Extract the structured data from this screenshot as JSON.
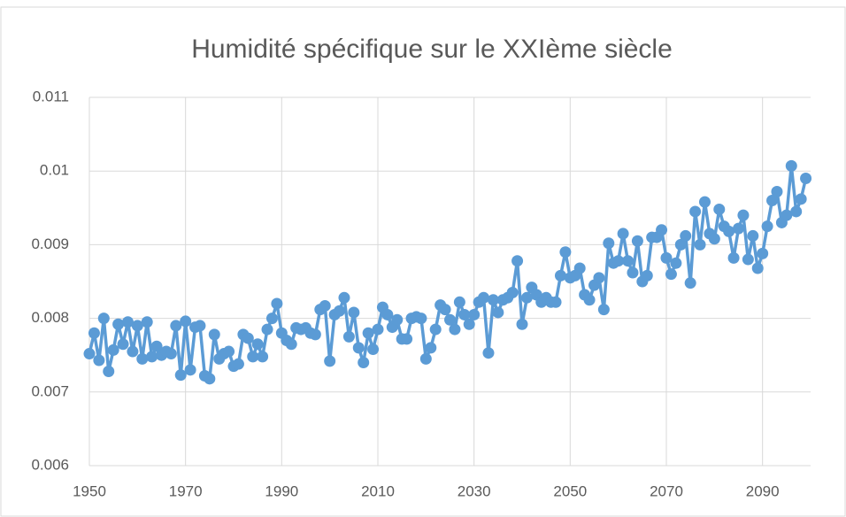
{
  "chart_data": {
    "type": "line",
    "title": "Humidité spécifique sur le XXIème siècle",
    "x": [
      1950,
      1951,
      1952,
      1953,
      1954,
      1955,
      1956,
      1957,
      1958,
      1959,
      1960,
      1961,
      1962,
      1963,
      1964,
      1965,
      1966,
      1967,
      1968,
      1969,
      1970,
      1971,
      1972,
      1973,
      1974,
      1975,
      1976,
      1977,
      1978,
      1979,
      1980,
      1981,
      1982,
      1983,
      1984,
      1985,
      1986,
      1987,
      1988,
      1989,
      1990,
      1991,
      1992,
      1993,
      1994,
      1995,
      1996,
      1997,
      1998,
      1999,
      2000,
      2001,
      2002,
      2003,
      2004,
      2005,
      2006,
      2007,
      2008,
      2009,
      2010,
      2011,
      2012,
      2013,
      2014,
      2015,
      2016,
      2017,
      2018,
      2019,
      2020,
      2021,
      2022,
      2023,
      2024,
      2025,
      2026,
      2027,
      2028,
      2029,
      2030,
      2031,
      2032,
      2033,
      2034,
      2035,
      2036,
      2037,
      2038,
      2039,
      2040,
      2041,
      2042,
      2043,
      2044,
      2045,
      2046,
      2047,
      2048,
      2049,
      2050,
      2051,
      2052,
      2053,
      2054,
      2055,
      2056,
      2057,
      2058,
      2059,
      2060,
      2061,
      2062,
      2063,
      2064,
      2065,
      2066,
      2067,
      2068,
      2069,
      2070,
      2071,
      2072,
      2073,
      2074,
      2075,
      2076,
      2077,
      2078,
      2079,
      2080,
      2081,
      2082,
      2083,
      2084,
      2085,
      2086,
      2087,
      2088,
      2089,
      2090,
      2091,
      2092,
      2093,
      2094,
      2095,
      2096,
      2097,
      2098,
      2099
    ],
    "series": [
      {
        "name": "Humidité spécifique",
        "color": "#5b9bd5",
        "values": [
          0.00752,
          0.0078,
          0.00743,
          0.008,
          0.00728,
          0.00757,
          0.00792,
          0.00765,
          0.00795,
          0.00755,
          0.0079,
          0.00745,
          0.00795,
          0.00748,
          0.00762,
          0.0075,
          0.00755,
          0.00752,
          0.0079,
          0.00723,
          0.00796,
          0.0073,
          0.00788,
          0.0079,
          0.00722,
          0.00718,
          0.00778,
          0.00745,
          0.00752,
          0.00755,
          0.00735,
          0.00738,
          0.00778,
          0.00773,
          0.00748,
          0.00765,
          0.00748,
          0.00785,
          0.008,
          0.0082,
          0.0078,
          0.0077,
          0.00765,
          0.00787,
          0.00785,
          0.00787,
          0.0078,
          0.00778,
          0.00812,
          0.00817,
          0.00742,
          0.00805,
          0.0081,
          0.00828,
          0.00775,
          0.00808,
          0.0076,
          0.0074,
          0.0078,
          0.00758,
          0.00785,
          0.00815,
          0.00805,
          0.00788,
          0.00798,
          0.00772,
          0.00772,
          0.008,
          0.00802,
          0.008,
          0.00745,
          0.0076,
          0.00785,
          0.00818,
          0.00812,
          0.00798,
          0.00785,
          0.00822,
          0.00805,
          0.00792,
          0.00805,
          0.00822,
          0.00828,
          0.00753,
          0.00825,
          0.00808,
          0.00825,
          0.00828,
          0.00835,
          0.00878,
          0.00792,
          0.00828,
          0.00842,
          0.00832,
          0.00822,
          0.00828,
          0.00822,
          0.00822,
          0.00858,
          0.0089,
          0.00855,
          0.00858,
          0.00868,
          0.00832,
          0.00825,
          0.00845,
          0.00855,
          0.00812,
          0.00902,
          0.00875,
          0.00878,
          0.00915,
          0.00878,
          0.00862,
          0.00905,
          0.0085,
          0.00858,
          0.0091,
          0.0091,
          0.0092,
          0.00882,
          0.0086,
          0.00875,
          0.009,
          0.00912,
          0.00848,
          0.00945,
          0.009,
          0.00958,
          0.00915,
          0.00908,
          0.00948,
          0.00925,
          0.00918,
          0.00882,
          0.00922,
          0.0094,
          0.0088,
          0.00912,
          0.00868,
          0.00888,
          0.00925,
          0.0096,
          0.00972,
          0.0093,
          0.0094,
          0.01007,
          0.00945,
          0.00962,
          0.0099
        ]
      }
    ],
    "xlim": [
      1950,
      2100
    ],
    "xticks": [
      1950,
      1970,
      1990,
      2010,
      2030,
      2050,
      2070,
      2090
    ],
    "ylim": [
      0.006,
      0.011
    ],
    "yticks": [
      0.006,
      0.007,
      0.008,
      0.009,
      0.01,
      0.011
    ],
    "grid": true
  }
}
